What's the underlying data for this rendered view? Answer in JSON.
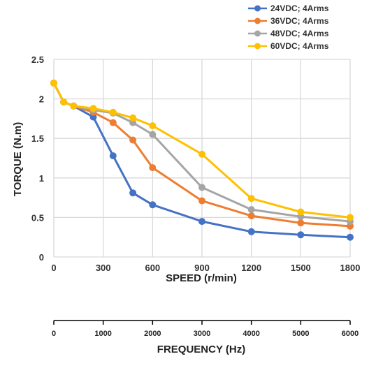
{
  "chart_data": {
    "type": "line",
    "xlabel": "SPEED (r/min)",
    "ylabel": "TORQUE (N.m)",
    "x2label": "FREQUENCY (Hz)",
    "xlim": [
      0,
      1800
    ],
    "ylim": [
      0,
      2.5
    ],
    "x2lim": [
      0,
      6000
    ],
    "x_ticks": [
      "0",
      "300",
      "600",
      "900",
      "1200",
      "1500",
      "1800"
    ],
    "y_ticks": [
      "0",
      "0.5",
      "1",
      "1.5",
      "2",
      "2.5"
    ],
    "x2_ticks": [
      "0",
      "1000",
      "2000",
      "3000",
      "4000",
      "5000",
      "6000"
    ],
    "grid": true,
    "legend_position": "top-right",
    "series": [
      {
        "name": "24VDC; 4Arms",
        "color": "#4472C4",
        "x": [
          0,
          60,
          120,
          240,
          360,
          480,
          600,
          900,
          1200,
          1500,
          1800
        ],
        "y": [
          2.2,
          1.96,
          1.91,
          1.77,
          1.28,
          0.81,
          0.66,
          0.45,
          0.32,
          0.28,
          0.25
        ]
      },
      {
        "name": "36VDC; 4Arms",
        "color": "#ED7D31",
        "x": [
          0,
          60,
          120,
          240,
          360,
          480,
          600,
          900,
          1200,
          1500,
          1800
        ],
        "y": [
          2.2,
          1.96,
          1.91,
          1.83,
          1.7,
          1.48,
          1.13,
          0.71,
          0.52,
          0.43,
          0.39
        ]
      },
      {
        "name": "48VDC; 4Arms",
        "color": "#A5A5A5",
        "x": [
          0,
          60,
          120,
          240,
          360,
          480,
          600,
          900,
          1200,
          1500,
          1800
        ],
        "y": [
          2.2,
          1.96,
          1.91,
          1.86,
          1.82,
          1.7,
          1.55,
          0.88,
          0.6,
          0.51,
          0.45
        ]
      },
      {
        "name": "60VDC; 4Arms",
        "color": "#FFC000",
        "x": [
          0,
          60,
          120,
          240,
          360,
          480,
          600,
          900,
          1200,
          1500,
          1800
        ],
        "y": [
          2.2,
          1.96,
          1.91,
          1.88,
          1.83,
          1.76,
          1.66,
          1.3,
          0.74,
          0.57,
          0.5
        ]
      }
    ]
  }
}
